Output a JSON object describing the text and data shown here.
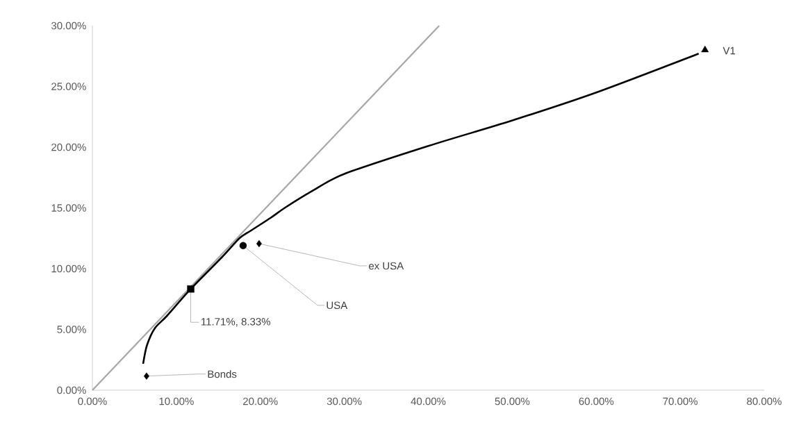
{
  "chart_data": {
    "type": "scatter",
    "xlim": [
      0,
      0.8
    ],
    "ylim": [
      0,
      0.3
    ],
    "xticks": [
      {
        "value": 0,
        "label": "0.00%"
      },
      {
        "value": 0.1,
        "label": "10.00%"
      },
      {
        "value": 0.2,
        "label": "20.00%"
      },
      {
        "value": 0.3,
        "label": "30.00%"
      },
      {
        "value": 0.4,
        "label": "40.00%"
      },
      {
        "value": 0.5,
        "label": "50.00%"
      },
      {
        "value": 0.6,
        "label": "60.00%"
      },
      {
        "value": 0.7,
        "label": "70.00%"
      },
      {
        "value": 0.8,
        "label": "80.00%"
      }
    ],
    "yticks": [
      {
        "value": 0,
        "label": "0.00%"
      },
      {
        "value": 0.05,
        "label": "5.00%"
      },
      {
        "value": 0.1,
        "label": "10.00%"
      },
      {
        "value": 0.15,
        "label": "15.00%"
      },
      {
        "value": 0.2,
        "label": "20.00%"
      },
      {
        "value": 0.25,
        "label": "25.00%"
      },
      {
        "value": 0.3,
        "label": "30.00%"
      }
    ],
    "series": [
      {
        "type": "line",
        "color": "#a6a6a6",
        "marker": "none",
        "x": [
          0,
          0.413
        ],
        "values": [
          0,
          0.3
        ]
      },
      {
        "type": "line",
        "color": "#000000",
        "marker": "none",
        "x": [
          0.0604,
          0.065,
          0.0744,
          0.0885,
          0.1171,
          0.155,
          0.175,
          0.188,
          0.2126,
          0.229,
          0.262,
          0.3,
          0.4,
          0.5,
          0.6,
          0.722
        ],
        "values": [
          0.0217,
          0.037,
          0.051,
          0.061,
          0.0833,
          0.11,
          0.125,
          0.131,
          0.142,
          0.15,
          0.164,
          0.178,
          0.201,
          0.222,
          0.245,
          0.277
        ]
      },
      {
        "color": "#000000",
        "marker": "diamond",
        "x": [
          0.0645
        ],
        "values": [
          0.0116
        ]
      },
      {
        "color": "#000000",
        "marker": "circle",
        "x": [
          0.1795
        ],
        "values": [
          0.119
        ]
      },
      {
        "color": "#000000",
        "marker": "diamond",
        "x": [
          0.1985
        ],
        "values": [
          0.1206
        ]
      },
      {
        "color": "#000000",
        "marker": "square",
        "x": [
          0.1171
        ],
        "values": [
          0.0833
        ]
      },
      {
        "color": "#000000",
        "marker": "triangle",
        "x": [
          0.7295
        ],
        "values": [
          0.28
        ]
      }
    ],
    "annotations": [
      {
        "text": "Bonds",
        "x": 0.0645,
        "y": 0.0116
      },
      {
        "text": "USA",
        "x": 0.1795,
        "y": 0.119
      },
      {
        "text": "ex USA",
        "x": 0.1985,
        "y": 0.1206
      },
      {
        "text": "11.71%, 8.33%",
        "x": 0.1171,
        "y": 0.0833
      },
      {
        "text": "V1",
        "x": 0.7295,
        "y": 0.28
      }
    ]
  }
}
